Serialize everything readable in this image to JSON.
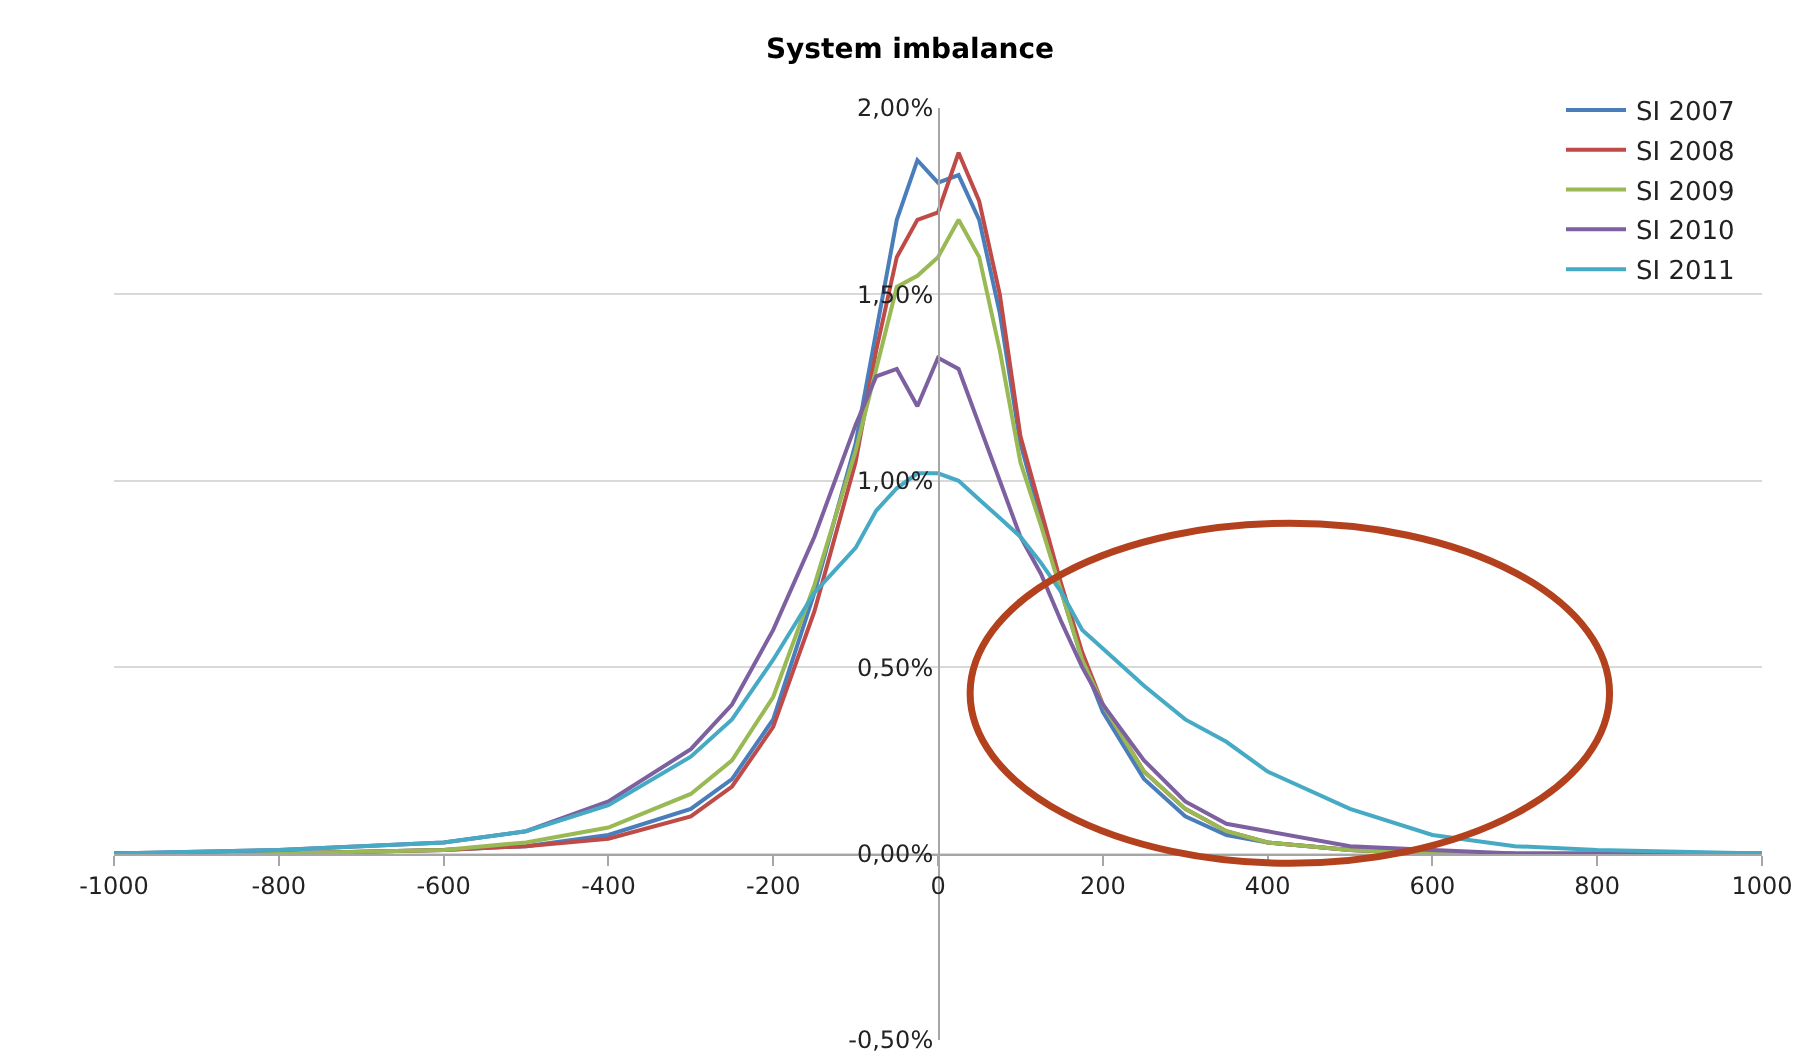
{
  "chart_data": {
    "type": "line",
    "title": "System imbalance",
    "x": [
      -1000,
      -800,
      -600,
      -500,
      -400,
      -300,
      -250,
      -200,
      -150,
      -100,
      -75,
      -50,
      -25,
      0,
      25,
      50,
      75,
      100,
      125,
      150,
      175,
      200,
      250,
      300,
      350,
      400,
      500,
      600,
      700,
      800,
      1000
    ],
    "series": [
      {
        "name": "SI 2007",
        "color": "#4a7ebb",
        "values": [
          0,
          0,
          0.01,
          0.02,
          0.05,
          0.12,
          0.2,
          0.36,
          0.7,
          1.1,
          1.4,
          1.7,
          1.86,
          1.8,
          1.82,
          1.7,
          1.45,
          1.1,
          0.9,
          0.7,
          0.52,
          0.38,
          0.2,
          0.1,
          0.05,
          0.03,
          0.01,
          0,
          0,
          0,
          0
        ]
      },
      {
        "name": "SI 2008",
        "color": "#be4b48",
        "values": [
          0,
          0,
          0.01,
          0.02,
          0.04,
          0.1,
          0.18,
          0.34,
          0.65,
          1.05,
          1.35,
          1.6,
          1.7,
          1.72,
          1.88,
          1.75,
          1.5,
          1.12,
          0.92,
          0.72,
          0.54,
          0.4,
          0.22,
          0.12,
          0.06,
          0.03,
          0.01,
          0,
          0,
          null,
          null
        ]
      },
      {
        "name": "SI 2009",
        "color": "#98b954",
        "values": [
          0,
          0,
          0.01,
          0.03,
          0.07,
          0.16,
          0.25,
          0.42,
          0.72,
          1.08,
          1.3,
          1.52,
          1.55,
          1.6,
          1.7,
          1.6,
          1.35,
          1.05,
          0.88,
          0.7,
          0.52,
          0.4,
          0.22,
          0.12,
          0.06,
          0.03,
          0.01,
          0,
          0,
          null,
          null
        ]
      },
      {
        "name": "SI 2010",
        "color": "#7d60a0",
        "values": [
          0,
          0.01,
          0.03,
          0.06,
          0.14,
          0.28,
          0.4,
          0.6,
          0.85,
          1.15,
          1.28,
          1.3,
          1.2,
          1.33,
          1.3,
          1.15,
          1.0,
          0.85,
          0.75,
          0.62,
          0.5,
          0.4,
          0.25,
          0.14,
          0.08,
          0.06,
          0.02,
          0.01,
          0,
          0,
          0
        ]
      },
      {
        "name": "SI 2011",
        "color": "#46aac5",
        "values": [
          0,
          0.01,
          0.03,
          0.06,
          0.13,
          0.26,
          0.36,
          0.52,
          0.7,
          0.82,
          0.92,
          0.98,
          1.02,
          1.02,
          1.0,
          0.95,
          0.9,
          0.85,
          0.78,
          0.7,
          0.6,
          0.55,
          0.45,
          0.36,
          0.3,
          0.22,
          0.12,
          0.05,
          0.02,
          0.01,
          0
        ]
      }
    ],
    "xlim": [
      -1000,
      1000
    ],
    "xticks": [
      -1000,
      -800,
      -600,
      -400,
      -200,
      0,
      200,
      400,
      600,
      800,
      1000
    ],
    "ylim": [
      -0.5,
      2
    ],
    "yticks": [
      {
        "value": -0.5,
        "label": "-0,50%"
      },
      {
        "value": 0,
        "label": "0,00%"
      },
      {
        "value": 0.5,
        "label": "0,50%"
      },
      {
        "value": 1,
        "label": "1,00%"
      },
      {
        "value": 1.5,
        "label": "1,50%"
      },
      {
        "value": 2,
        "label": "2,00%"
      }
    ],
    "grid": "y",
    "legend": "top right",
    "marker": "none",
    "line_style": "solid"
  }
}
